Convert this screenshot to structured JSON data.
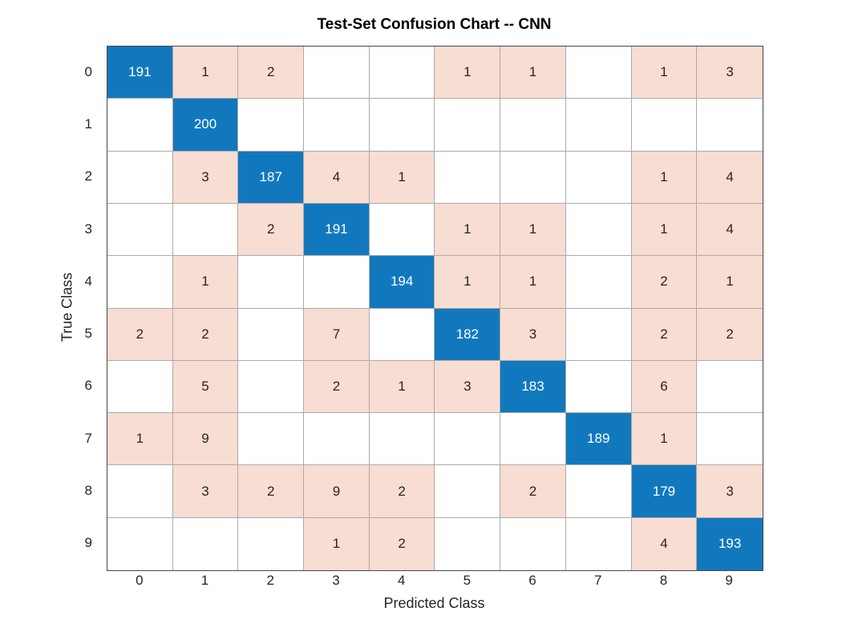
{
  "chart_data": {
    "type": "heatmap",
    "subtype": "confusion-matrix",
    "title": "Test-Set Confusion Chart -- CNN",
    "xlabel": "Predicted Class",
    "ylabel": "True Class",
    "x_categories": [
      "0",
      "1",
      "2",
      "3",
      "4",
      "5",
      "6",
      "7",
      "8",
      "9"
    ],
    "y_categories": [
      "0",
      "1",
      "2",
      "3",
      "4",
      "5",
      "6",
      "7",
      "8",
      "9"
    ],
    "matrix": [
      [
        191,
        1,
        2,
        0,
        0,
        1,
        1,
        0,
        1,
        3
      ],
      [
        0,
        200,
        0,
        0,
        0,
        0,
        0,
        0,
        0,
        0
      ],
      [
        0,
        3,
        187,
        4,
        1,
        0,
        0,
        0,
        1,
        4
      ],
      [
        0,
        0,
        2,
        191,
        0,
        1,
        1,
        0,
        1,
        4
      ],
      [
        0,
        1,
        0,
        0,
        194,
        1,
        1,
        0,
        2,
        1
      ],
      [
        2,
        2,
        0,
        7,
        0,
        182,
        3,
        0,
        2,
        2
      ],
      [
        0,
        5,
        0,
        2,
        1,
        3,
        183,
        0,
        6,
        0
      ],
      [
        1,
        9,
        0,
        0,
        0,
        0,
        0,
        189,
        1,
        0
      ],
      [
        0,
        3,
        2,
        9,
        2,
        0,
        2,
        0,
        179,
        3
      ],
      [
        0,
        0,
        0,
        1,
        2,
        0,
        0,
        0,
        4,
        193
      ]
    ],
    "layout": {
      "grid": "on",
      "legend": "none",
      "cell_text_hidden_when_zero": true
    },
    "colors": {
      "diagonal": "#1278be",
      "off_diagonal_nonzero": "#f8ddd2",
      "zero_cell": "#ffffff",
      "diagonal_text": "#ffffff",
      "cell_text": "#262626",
      "grid_line": "#ababab",
      "axes_box": "#474747"
    }
  }
}
